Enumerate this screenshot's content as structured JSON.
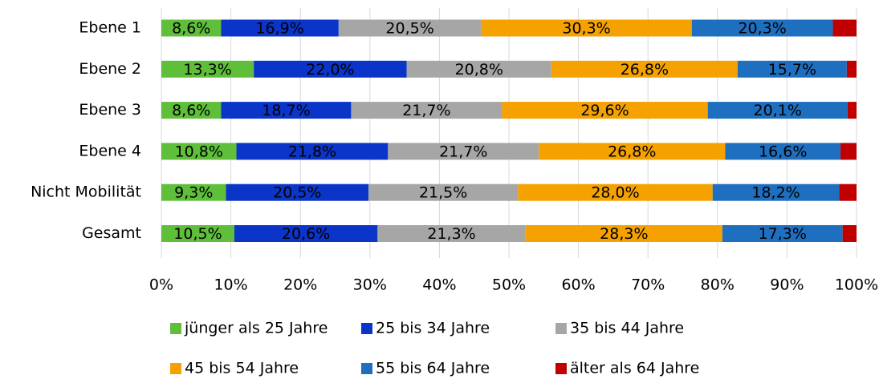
{
  "chart_data": {
    "type": "stacked_barh",
    "categories": [
      "Ebene 1",
      "Ebene 2",
      "Ebene 3",
      "Ebene 4",
      "Nicht Mobilität",
      "Gesamt"
    ],
    "series": [
      {
        "name": "jünger als 25 Jahre",
        "color": "#5fbf3b",
        "values": [
          8.6,
          13.3,
          8.6,
          10.8,
          9.3,
          10.5
        ],
        "value_labels": [
          "8,6%",
          "13,3%",
          "8,6%",
          "10,8%",
          "9,3%",
          "10,5%"
        ]
      },
      {
        "name": "25 bis 34 Jahre",
        "color": "#0a35c8",
        "values": [
          16.9,
          22.0,
          18.7,
          21.8,
          20.5,
          20.6
        ],
        "value_labels": [
          "16,9%",
          "22,0%",
          "18,7%",
          "21,8%",
          "20,5%",
          "20,6%"
        ]
      },
      {
        "name": "35 bis 44 Jahre",
        "color": "#a6a6a6",
        "values": [
          20.5,
          20.8,
          21.7,
          21.7,
          21.5,
          21.3
        ],
        "value_labels": [
          "20,5%",
          "20,8%",
          "21,7%",
          "21,7%",
          "21,5%",
          "21,3%"
        ]
      },
      {
        "name": "45 bis 54 Jahre",
        "color": "#f5a200",
        "values": [
          30.3,
          26.8,
          29.6,
          26.8,
          28.0,
          28.3
        ],
        "value_labels": [
          "30,3%",
          "26,8%",
          "29,6%",
          "26,8%",
          "28,0%",
          "28,3%"
        ]
      },
      {
        "name": "55 bis 64 Jahre",
        "color": "#1f6fc0",
        "values": [
          20.3,
          15.7,
          20.1,
          16.6,
          18.2,
          17.3
        ],
        "value_labels": [
          "20,3%",
          "15,7%",
          "20,1%",
          "16,6%",
          "18,2%",
          "17,3%"
        ]
      },
      {
        "name": "älter als 64 Jahre",
        "color": "#c00000",
        "values": [
          3.4,
          1.4,
          1.3,
          2.3,
          2.5,
          2.0
        ]
      }
    ],
    "xlim": [
      0,
      100
    ],
    "xticks": [
      {
        "value": 0,
        "label": "0%"
      },
      {
        "value": 10,
        "label": "10%"
      },
      {
        "value": 20,
        "label": "20%"
      },
      {
        "value": 30,
        "label": "30%"
      },
      {
        "value": 40,
        "label": "40%"
      },
      {
        "value": 50,
        "label": "50%"
      },
      {
        "value": 60,
        "label": "60%"
      },
      {
        "value": 70,
        "label": "70%"
      },
      {
        "value": 80,
        "label": "80%"
      },
      {
        "value": 90,
        "label": "90%"
      },
      {
        "value": 100,
        "label": "100%"
      }
    ],
    "grid": true,
    "legend": "bottom"
  }
}
